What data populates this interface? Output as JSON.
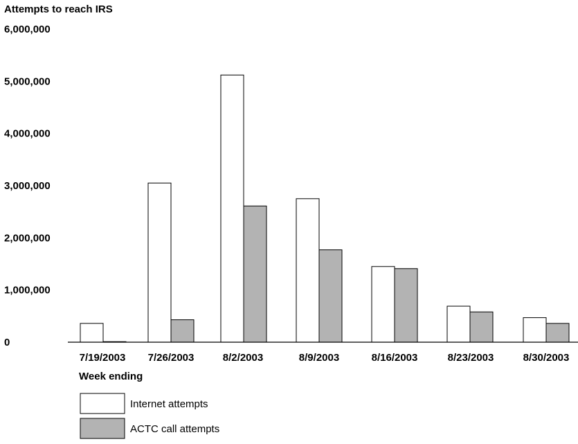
{
  "chart_data": {
    "type": "bar",
    "title": "Attempts to reach IRS",
    "xlabel": "Week ending",
    "ylabel": "",
    "ylim": [
      0,
      6000000
    ],
    "y_ticks": [
      0,
      1000000,
      2000000,
      3000000,
      4000000,
      5000000,
      6000000
    ],
    "y_tick_labels": [
      "0",
      "1,000,000",
      "2,000,000",
      "3,000,000",
      "4,000,000",
      "5,000,000",
      "6,000,000"
    ],
    "categories": [
      "7/19/2003",
      "7/26/2003",
      "8/2/2003",
      "8/9/2003",
      "8/16/2003",
      "8/23/2003",
      "8/30/2003"
    ],
    "series": [
      {
        "name": "Internet attempts",
        "color": "#ffffff",
        "values": [
          360000,
          3050000,
          5120000,
          2750000,
          1450000,
          690000,
          470000
        ]
      },
      {
        "name": "ACTC call attempts",
        "color": "#b3b3b3",
        "values": [
          10000,
          430000,
          2610000,
          1770000,
          1410000,
          580000,
          360000
        ]
      }
    ],
    "grid": false,
    "legend_position": "bottom-left"
  }
}
